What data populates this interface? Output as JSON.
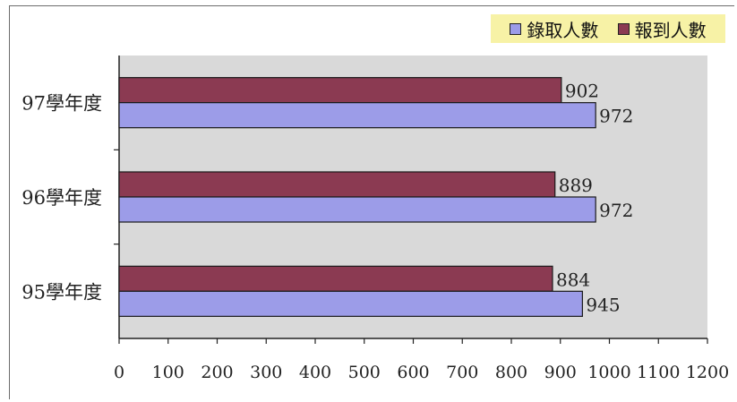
{
  "chart_data": {
    "type": "bar",
    "orientation": "horizontal",
    "categories": [
      "97學年度",
      "96學年度",
      "95學年度"
    ],
    "series": [
      {
        "name": "報到人數",
        "values": [
          902,
          889,
          884
        ],
        "color": "#8b3a52"
      },
      {
        "name": "錄取人數",
        "values": [
          972,
          972,
          945
        ],
        "color": "#9c9ce8"
      }
    ],
    "xlim": [
      0,
      1200
    ],
    "xticks": [
      "0",
      "100",
      "200",
      "300",
      "400",
      "500",
      "600",
      "700",
      "800",
      "900",
      "1000",
      "1100",
      "1200"
    ],
    "legend": {
      "placement": "top-right",
      "items": [
        {
          "label": "錄取人數",
          "color": "#9c9ce8"
        },
        {
          "label": "報到人數",
          "color": "#8b3a52"
        }
      ],
      "background": "#f7f2a6"
    },
    "plot_background": "#d9d9d9",
    "grid": false
  }
}
